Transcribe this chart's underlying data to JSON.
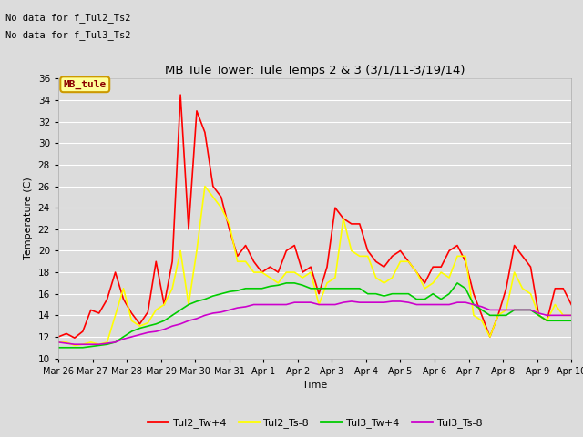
{
  "title": "MB Tule Tower: Tule Temps 2 & 3 (3/1/11-3/19/14)",
  "xlabel": "Time",
  "ylabel": "Temperature (C)",
  "ylim": [
    10,
    36
  ],
  "yticks": [
    10,
    12,
    14,
    16,
    18,
    20,
    22,
    24,
    26,
    28,
    30,
    32,
    34,
    36
  ],
  "bg_color": "#dcdcdc",
  "plot_bg_color": "#dcdcdc",
  "note1": "No data for f_Tul2_Ts2",
  "note2": "No data for f_Tul3_Ts2",
  "legend_label": "MB_tule",
  "legend_bg": "#ffff99",
  "legend_border": "#cc9900",
  "series_colors": {
    "Tul2_Tw+4": "#ff0000",
    "Tul2_Ts-8": "#ffff00",
    "Tul3_Tw+4": "#00cc00",
    "Tul3_Ts-8": "#cc00cc"
  },
  "xtick_labels": [
    "Mar 26",
    "Mar 27",
    "Mar 28",
    "Mar 29",
    "Mar 30",
    "Mar 31",
    "Apr 1",
    "Apr 2",
    "Apr 3",
    "Apr 4",
    "Apr 5",
    "Apr 6",
    "Apr 7",
    "Apr 8",
    "Apr 9",
    "Apr 10"
  ],
  "x_values": [
    0,
    1,
    2,
    3,
    4,
    5,
    6,
    7,
    8,
    9,
    10,
    11,
    12,
    13,
    14,
    15
  ],
  "Tul2_Tw4": [
    12.0,
    12.3,
    11.9,
    12.5,
    14.5,
    14.2,
    15.5,
    18.0,
    15.5,
    14.2,
    13.2,
    14.3,
    19.0,
    15.0,
    19.0,
    34.5,
    22.0,
    33.0,
    31.0,
    26.0,
    25.0,
    22.0,
    19.5,
    20.5,
    19.0,
    18.0,
    18.5,
    18.0,
    20.0,
    20.5,
    18.0,
    18.5,
    16.0,
    18.5,
    24.0,
    23.0,
    22.5,
    22.5,
    20.0,
    19.0,
    18.5,
    19.5,
    20.0,
    19.0,
    18.0,
    17.0,
    18.5,
    18.5,
    20.0,
    20.5,
    19.0,
    16.0,
    14.0,
    12.0,
    14.0,
    16.5,
    20.5,
    19.5,
    18.5,
    14.0,
    13.5,
    16.5,
    16.5,
    15.0
  ],
  "Tul2_Ts8": [
    11.5,
    11.5,
    11.2,
    11.3,
    11.5,
    11.3,
    11.5,
    14.0,
    16.5,
    13.5,
    13.0,
    13.3,
    14.5,
    15.0,
    16.5,
    20.0,
    15.0,
    20.0,
    26.0,
    25.0,
    24.0,
    22.5,
    19.0,
    19.0,
    18.0,
    18.0,
    17.5,
    17.0,
    18.0,
    18.0,
    17.5,
    18.0,
    15.0,
    17.0,
    17.5,
    23.0,
    20.0,
    19.5,
    19.5,
    17.5,
    17.0,
    17.5,
    19.0,
    19.0,
    18.0,
    16.5,
    17.0,
    18.0,
    17.5,
    19.5,
    19.5,
    14.0,
    13.5,
    12.0,
    14.0,
    14.5,
    18.0,
    16.5,
    16.0,
    14.0,
    13.5,
    15.0,
    14.0,
    14.0
  ],
  "Tul3_Tw4": [
    11.0,
    11.0,
    11.0,
    11.0,
    11.1,
    11.2,
    11.3,
    11.5,
    12.0,
    12.5,
    12.8,
    13.0,
    13.2,
    13.5,
    14.0,
    14.5,
    15.0,
    15.3,
    15.5,
    15.8,
    16.0,
    16.2,
    16.3,
    16.5,
    16.5,
    16.5,
    16.7,
    16.8,
    17.0,
    17.0,
    16.8,
    16.5,
    16.5,
    16.5,
    16.5,
    16.5,
    16.5,
    16.5,
    16.0,
    16.0,
    15.8,
    16.0,
    16.0,
    16.0,
    15.5,
    15.5,
    16.0,
    15.5,
    16.0,
    17.0,
    16.5,
    15.0,
    14.5,
    14.0,
    14.0,
    14.0,
    14.5,
    14.5,
    14.5,
    14.0,
    13.5,
    13.5,
    13.5,
    13.5
  ],
  "Tul3_Ts8": [
    11.5,
    11.4,
    11.3,
    11.3,
    11.3,
    11.3,
    11.4,
    11.5,
    11.8,
    12.0,
    12.2,
    12.4,
    12.5,
    12.7,
    13.0,
    13.2,
    13.5,
    13.7,
    14.0,
    14.2,
    14.3,
    14.5,
    14.7,
    14.8,
    15.0,
    15.0,
    15.0,
    15.0,
    15.0,
    15.2,
    15.2,
    15.2,
    15.0,
    15.0,
    15.0,
    15.2,
    15.3,
    15.2,
    15.2,
    15.2,
    15.2,
    15.3,
    15.3,
    15.2,
    15.0,
    15.0,
    15.0,
    15.0,
    15.0,
    15.2,
    15.2,
    15.0,
    14.8,
    14.5,
    14.5,
    14.5,
    14.5,
    14.5,
    14.5,
    14.2,
    14.0,
    14.0,
    14.0,
    14.0
  ]
}
